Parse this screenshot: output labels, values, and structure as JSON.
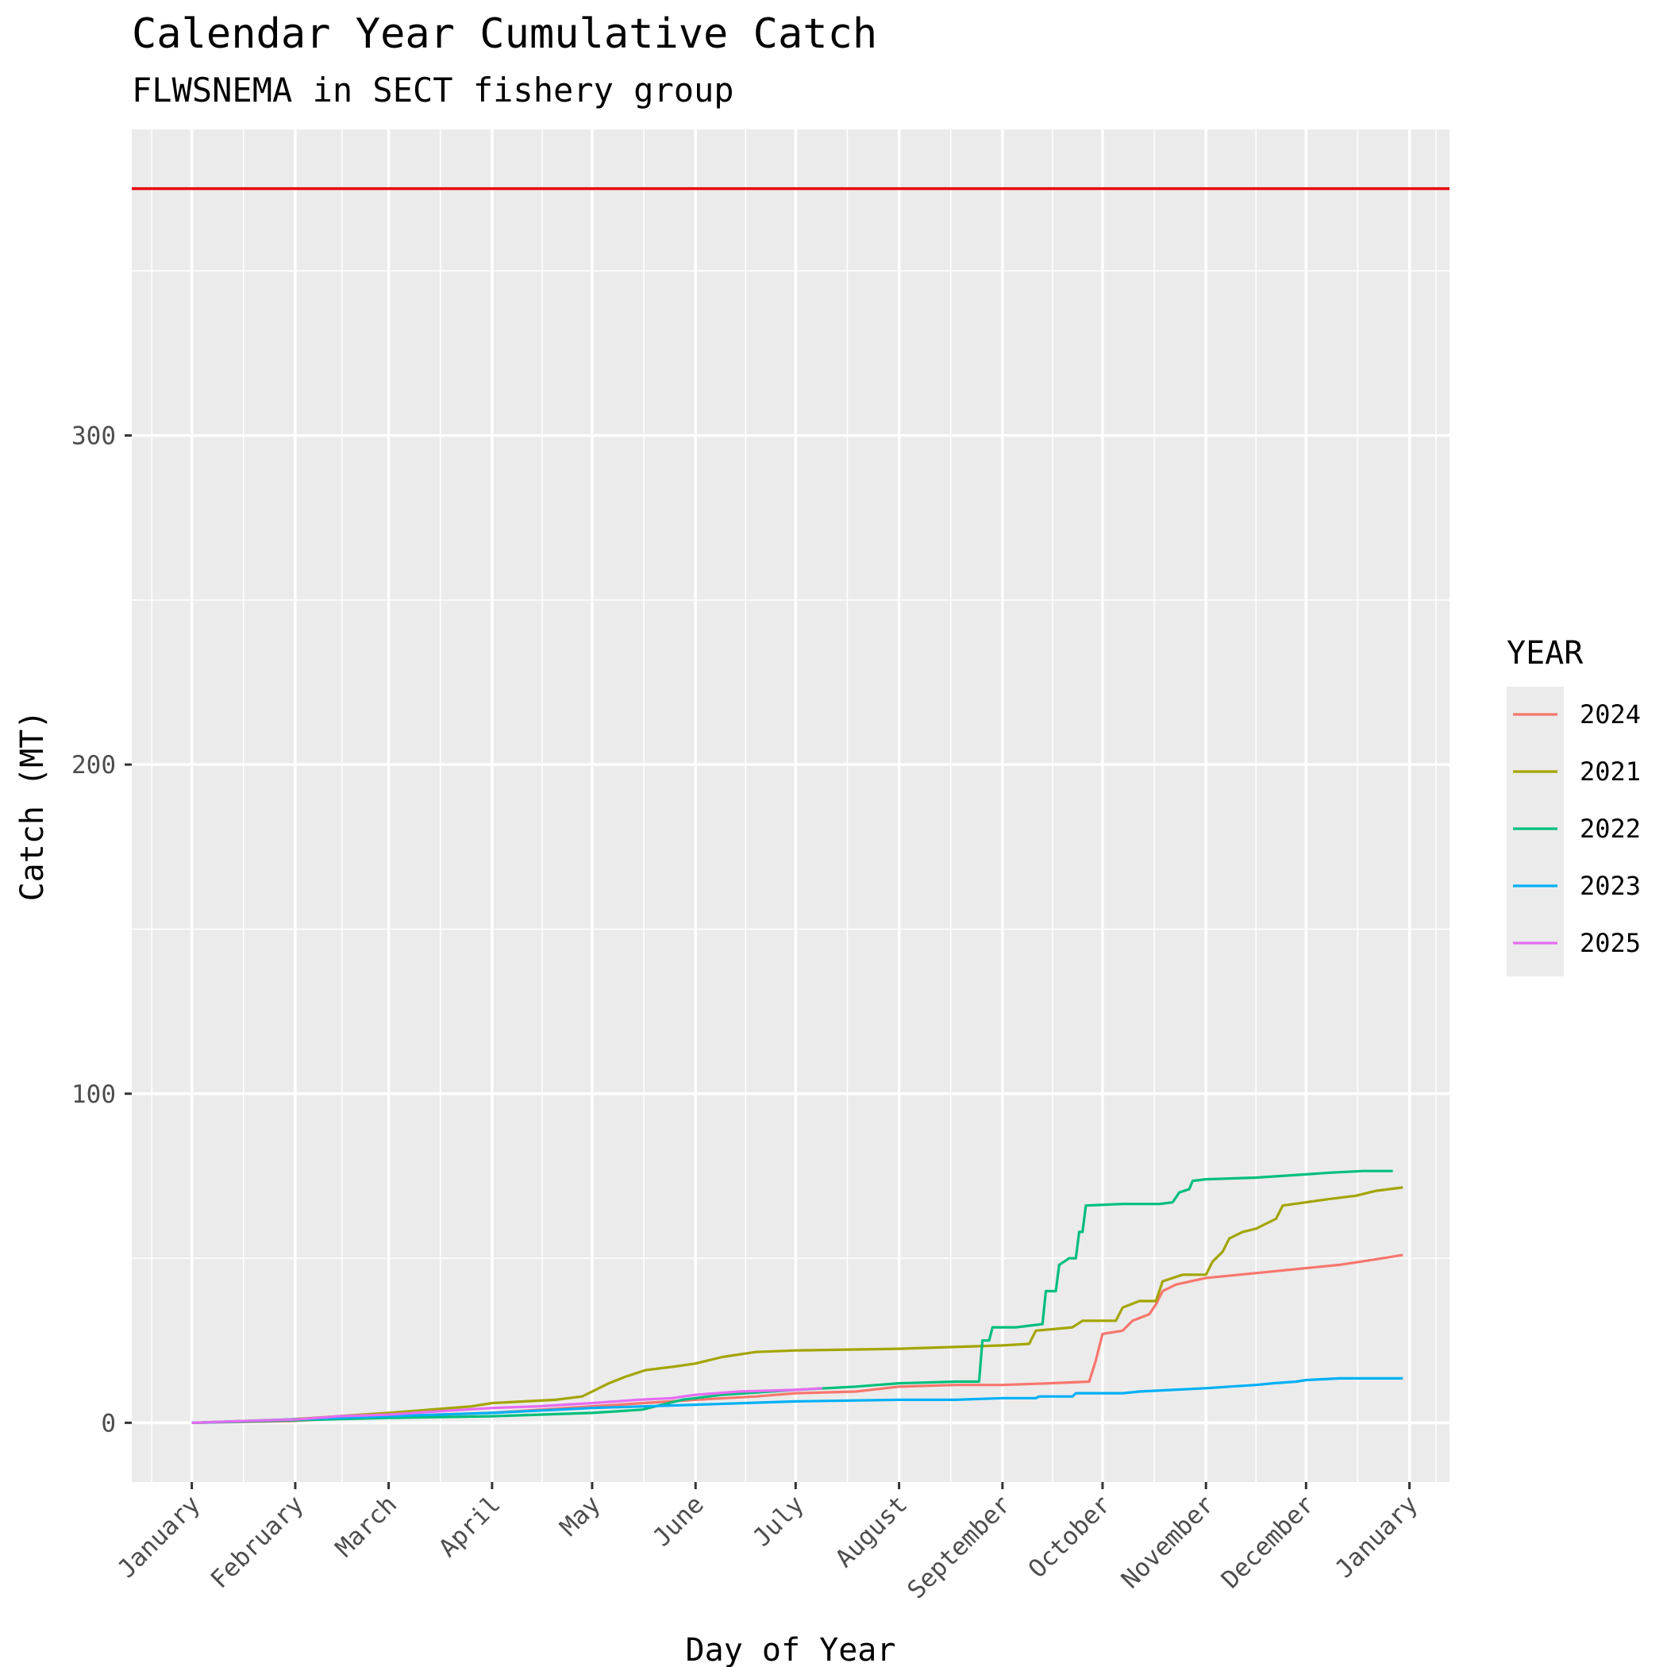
{
  "chart_data": {
    "type": "line",
    "title": "Calendar Year Cumulative Catch",
    "subtitle": "FLWSNEMA in SECT fishery group",
    "xlabel": "Day of Year",
    "ylabel": "Catch (MT)",
    "x_unit": "day of year",
    "xlim": [
      -17,
      378
    ],
    "ylim": [
      -18,
      393
    ],
    "x_ticks": [
      {
        "label": "January",
        "day": 1
      },
      {
        "label": "February",
        "day": 32
      },
      {
        "label": "March",
        "day": 60
      },
      {
        "label": "April",
        "day": 91
      },
      {
        "label": "May",
        "day": 121
      },
      {
        "label": "June",
        "day": 152
      },
      {
        "label": "July",
        "day": 182
      },
      {
        "label": "August",
        "day": 213
      },
      {
        "label": "September",
        "day": 244
      },
      {
        "label": "October",
        "day": 274
      },
      {
        "label": "November",
        "day": 305
      },
      {
        "label": "December",
        "day": 335
      },
      {
        "label": "January",
        "day": 366
      }
    ],
    "y_ticks": [
      0,
      100,
      200,
      300
    ],
    "grid": true,
    "reference_line": {
      "y": 375,
      "color": "#e8000b"
    },
    "legend": {
      "title": "YEAR",
      "position": "right"
    },
    "series": [
      {
        "name": "2024",
        "color": "#f8766d",
        "points": [
          [
            1,
            0
          ],
          [
            30,
            0.5
          ],
          [
            60,
            2
          ],
          [
            91,
            3
          ],
          [
            121,
            5
          ],
          [
            152,
            7
          ],
          [
            170,
            8
          ],
          [
            182,
            9
          ],
          [
            200,
            9.5
          ],
          [
            213,
            11
          ],
          [
            230,
            11.5
          ],
          [
            244,
            11.5
          ],
          [
            258,
            12
          ],
          [
            270,
            12.5
          ],
          [
            272,
            19
          ],
          [
            274,
            27
          ],
          [
            280,
            28
          ],
          [
            283,
            31
          ],
          [
            288,
            33
          ],
          [
            290,
            36
          ],
          [
            292,
            40
          ],
          [
            296,
            42
          ],
          [
            305,
            44
          ],
          [
            315,
            45
          ],
          [
            325,
            46
          ],
          [
            335,
            47
          ],
          [
            345,
            48
          ],
          [
            355,
            49.5
          ],
          [
            364,
            51
          ]
        ]
      },
      {
        "name": "2021",
        "color": "#a3a500",
        "points": [
          [
            1,
            0
          ],
          [
            30,
            1
          ],
          [
            60,
            3
          ],
          [
            85,
            5
          ],
          [
            91,
            6
          ],
          [
            110,
            7
          ],
          [
            118,
            8
          ],
          [
            122,
            10
          ],
          [
            126,
            12
          ],
          [
            131,
            14
          ],
          [
            137,
            16
          ],
          [
            145,
            17
          ],
          [
            152,
            18
          ],
          [
            160,
            20
          ],
          [
            170,
            21.5
          ],
          [
            182,
            22
          ],
          [
            213,
            22.5
          ],
          [
            244,
            23.5
          ],
          [
            252,
            24
          ],
          [
            254,
            28
          ],
          [
            265,
            29
          ],
          [
            268,
            31
          ],
          [
            278,
            31
          ],
          [
            280,
            35
          ],
          [
            285,
            37
          ],
          [
            290,
            37
          ],
          [
            292,
            43
          ],
          [
            298,
            45
          ],
          [
            305,
            45
          ],
          [
            307,
            49
          ],
          [
            310,
            52
          ],
          [
            312,
            56
          ],
          [
            316,
            58
          ],
          [
            320,
            59
          ],
          [
            324,
            61
          ],
          [
            326,
            62
          ],
          [
            328,
            66
          ],
          [
            335,
            67
          ],
          [
            342,
            68
          ],
          [
            350,
            69
          ],
          [
            356,
            70.5
          ],
          [
            364,
            71.5
          ]
        ]
      },
      {
        "name": "2022",
        "color": "#00bf7d",
        "points": [
          [
            1,
            0
          ],
          [
            60,
            1.5
          ],
          [
            91,
            2
          ],
          [
            121,
            3
          ],
          [
            136,
            4
          ],
          [
            140,
            5
          ],
          [
            148,
            7
          ],
          [
            160,
            8.5
          ],
          [
            182,
            10
          ],
          [
            200,
            11
          ],
          [
            213,
            12
          ],
          [
            230,
            12.5
          ],
          [
            237,
            12.5
          ],
          [
            238,
            25
          ],
          [
            240,
            25
          ],
          [
            241,
            29
          ],
          [
            248,
            29
          ],
          [
            256,
            30
          ],
          [
            257,
            40
          ],
          [
            260,
            40
          ],
          [
            261,
            48
          ],
          [
            264,
            50
          ],
          [
            266,
            50
          ],
          [
            267,
            58
          ],
          [
            268,
            58
          ],
          [
            269,
            66
          ],
          [
            280,
            66.5
          ],
          [
            291,
            66.5
          ],
          [
            295,
            67
          ],
          [
            297,
            70
          ],
          [
            300,
            71
          ],
          [
            301,
            73.5
          ],
          [
            305,
            74
          ],
          [
            320,
            74.5
          ],
          [
            335,
            75.5
          ],
          [
            342,
            76
          ],
          [
            352,
            76.5
          ],
          [
            361,
            76.5
          ]
        ]
      },
      {
        "name": "2023",
        "color": "#00b0f6",
        "points": [
          [
            1,
            0
          ],
          [
            30,
            1
          ],
          [
            60,
            2
          ],
          [
            91,
            3
          ],
          [
            121,
            4.5
          ],
          [
            152,
            5.5
          ],
          [
            182,
            6.5
          ],
          [
            213,
            7
          ],
          [
            230,
            7
          ],
          [
            244,
            7.5
          ],
          [
            254,
            7.5
          ],
          [
            255,
            8
          ],
          [
            265,
            8
          ],
          [
            266,
            9
          ],
          [
            280,
            9
          ],
          [
            285,
            9.5
          ],
          [
            295,
            10
          ],
          [
            305,
            10.5
          ],
          [
            312,
            11
          ],
          [
            320,
            11.5
          ],
          [
            325,
            12
          ],
          [
            332,
            12.5
          ],
          [
            335,
            13
          ],
          [
            345,
            13.5
          ],
          [
            364,
            13.5
          ]
        ]
      },
      {
        "name": "2025",
        "color": "#e76bf3",
        "points": [
          [
            1,
            0
          ],
          [
            15,
            0.5
          ],
          [
            32,
            1
          ],
          [
            45,
            2
          ],
          [
            60,
            2.5
          ],
          [
            75,
            3.5
          ],
          [
            91,
            4.5
          ],
          [
            105,
            5
          ],
          [
            121,
            6
          ],
          [
            135,
            7
          ],
          [
            145,
            7.5
          ],
          [
            152,
            8.5
          ],
          [
            165,
            9.5
          ],
          [
            182,
            10
          ],
          [
            190,
            10.5
          ]
        ]
      }
    ]
  }
}
